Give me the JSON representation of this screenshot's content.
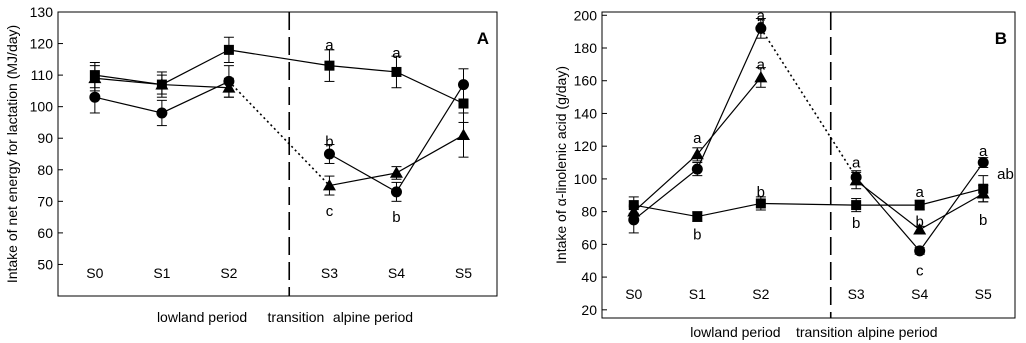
{
  "chart_data": [
    {
      "type": "line",
      "panel_label": "A",
      "ylabel": "Intake of net energy for lactation (MJ/day)",
      "ylim": [
        40,
        130
      ],
      "yticks": [
        50,
        60,
        70,
        80,
        90,
        100,
        110,
        120,
        130
      ],
      "x_points": [
        "S0",
        "S1",
        "S2",
        "S3",
        "S4",
        "S5"
      ],
      "x_positions": [
        0,
        1,
        2,
        3.5,
        4.5,
        5.5
      ],
      "xlim": [
        -0.55,
        6
      ],
      "period_labels": [
        "lowland period",
        "transition",
        "alpine period"
      ],
      "divider_x": 2.9,
      "series": [
        {
          "marker": "square",
          "values": [
            110,
            107,
            118,
            113,
            111,
            101
          ],
          "errors": [
            4,
            4,
            4,
            5,
            5,
            6
          ]
        },
        {
          "marker": "circle",
          "values": [
            103,
            98,
            108,
            85,
            73,
            107
          ],
          "errors": [
            5,
            4,
            5,
            3,
            3,
            5
          ]
        },
        {
          "marker": "triangle",
          "values": [
            109,
            107,
            106,
            75,
            79,
            91
          ],
          "errors": [
            4,
            3,
            3,
            3,
            2,
            7
          ]
        }
      ],
      "transition_links": [
        {
          "from": [
            2,
            108
          ],
          "to": [
            3.5,
            75
          ]
        }
      ],
      "annotations": [
        {
          "x": 3.5,
          "y": 119.5,
          "text": "a"
        },
        {
          "x": 3.5,
          "y": 89,
          "text": "b"
        },
        {
          "x": 3.5,
          "y": 67,
          "text": "c"
        },
        {
          "x": 4.5,
          "y": 117,
          "text": "a"
        },
        {
          "x": 4.5,
          "y": 65,
          "text": "b"
        }
      ]
    },
    {
      "type": "line",
      "panel_label": "B",
      "ylabel": "Intake of α-linolenic acid (g/day)",
      "ylim": [
        15,
        202
      ],
      "yticks": [
        20,
        40,
        60,
        80,
        100,
        120,
        140,
        160,
        180,
        200
      ],
      "x_points": [
        "S0",
        "S1",
        "S2",
        "S3",
        "S4",
        "S5"
      ],
      "x_positions": [
        0,
        1,
        2,
        3.5,
        4.5,
        5.5
      ],
      "xlim": [
        -0.5,
        6
      ],
      "period_labels": [
        "lowland period",
        "transition",
        "alpine period"
      ],
      "divider_x": 3.1,
      "series": [
        {
          "marker": "square",
          "values": [
            84,
            77,
            85,
            84,
            84,
            94
          ],
          "errors": [
            5,
            3,
            4,
            4,
            3,
            8
          ]
        },
        {
          "marker": "circle",
          "values": [
            75,
            106,
            192,
            101,
            56,
            110
          ],
          "errors": [
            8,
            4,
            6,
            4,
            2,
            3
          ]
        },
        {
          "marker": "triangle",
          "values": [
            80,
            115,
            162,
            99,
            69,
            91
          ],
          "errors": [
            4,
            4,
            6,
            5,
            2,
            5
          ]
        }
      ],
      "transition_links": [
        {
          "from": [
            2,
            192
          ],
          "to": [
            3.5,
            101
          ]
        }
      ],
      "annotations": [
        {
          "x": 1,
          "y": 125,
          "text": "a"
        },
        {
          "x": 1,
          "y": 66,
          "text": "b"
        },
        {
          "x": 2,
          "y": 200,
          "text": "a"
        },
        {
          "x": 2,
          "y": 196,
          "text": "a"
        },
        {
          "x": 2,
          "y": 170,
          "text": "a"
        },
        {
          "x": 2,
          "y": 92,
          "text": "b"
        },
        {
          "x": 3.5,
          "y": 110,
          "text": "a"
        },
        {
          "x": 3.5,
          "y": 73,
          "text": "b"
        },
        {
          "x": 4.5,
          "y": 92,
          "text": "a"
        },
        {
          "x": 4.5,
          "y": 74,
          "text": "b"
        },
        {
          "x": 4.5,
          "y": 44,
          "text": "c"
        },
        {
          "x": 5.5,
          "y": 117,
          "text": "a"
        },
        {
          "x": 5.85,
          "y": 103,
          "text": "ab"
        },
        {
          "x": 5.5,
          "y": 75,
          "text": "b"
        }
      ]
    }
  ]
}
